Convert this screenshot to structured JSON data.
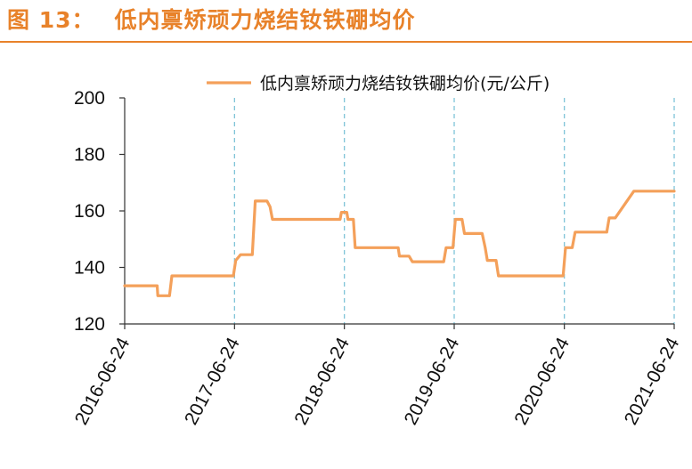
{
  "figure": {
    "number": "图 13：",
    "title": "低内禀矫顽力烧结钕铁硼均价"
  },
  "colors": {
    "accent": "#E8822A",
    "line": "#F4A05A",
    "gridline": "#7EC4D8",
    "axis": "#333333"
  },
  "chart_data": {
    "type": "line",
    "title": "",
    "xlabel": "",
    "ylabel": "",
    "ylim": [
      120,
      200
    ],
    "yticks": [
      120,
      140,
      160,
      180,
      200
    ],
    "x_range": [
      "2016-06-24",
      "2021-06-24"
    ],
    "xticks": [
      "2016-06-24",
      "2017-06-24",
      "2018-06-24",
      "2019-06-24",
      "2020-06-24",
      "2021-06-24"
    ],
    "vertical_gridlines": [
      "2017-06-24",
      "2018-06-24",
      "2019-06-24",
      "2020-06-24",
      "2021-06-24"
    ],
    "legend_position": "top",
    "series": [
      {
        "name": "低内禀矫顽力烧结钕铁硼均价(元/公斤)",
        "points": [
          [
            "2016-06-24",
            133.5
          ],
          [
            "2016-10-10",
            133.5
          ],
          [
            "2016-10-12",
            130
          ],
          [
            "2016-11-20",
            130
          ],
          [
            "2016-11-28",
            137
          ],
          [
            "2017-06-20",
            137
          ],
          [
            "2017-06-28",
            142.5
          ],
          [
            "2017-07-14",
            144.5
          ],
          [
            "2017-08-22",
            144.5
          ],
          [
            "2017-09-01",
            163.5
          ],
          [
            "2017-10-10",
            163.5
          ],
          [
            "2017-10-20",
            161.5
          ],
          [
            "2017-10-28",
            157
          ],
          [
            "2018-06-10",
            157
          ],
          [
            "2018-06-14",
            159.5
          ],
          [
            "2018-07-02",
            159.5
          ],
          [
            "2018-07-06",
            157
          ],
          [
            "2018-07-24",
            157
          ],
          [
            "2018-07-30",
            147
          ],
          [
            "2018-12-20",
            147
          ],
          [
            "2018-12-24",
            144
          ],
          [
            "2019-01-25",
            144
          ],
          [
            "2019-02-05",
            142
          ],
          [
            "2019-05-20",
            142
          ],
          [
            "2019-05-28",
            147
          ],
          [
            "2019-06-20",
            147
          ],
          [
            "2019-06-28",
            157
          ],
          [
            "2019-07-20",
            157
          ],
          [
            "2019-07-28",
            152
          ],
          [
            "2019-09-25",
            152
          ],
          [
            "2019-10-05",
            147
          ],
          [
            "2019-10-12",
            142.5
          ],
          [
            "2019-11-10",
            142.5
          ],
          [
            "2019-11-18",
            137
          ],
          [
            "2020-06-20",
            137
          ],
          [
            "2020-06-28",
            147
          ],
          [
            "2020-07-20",
            147
          ],
          [
            "2020-07-30",
            152.5
          ],
          [
            "2020-11-12",
            152.5
          ],
          [
            "2020-11-20",
            157.5
          ],
          [
            "2020-12-10",
            157.5
          ],
          [
            "2021-02-10",
            167
          ],
          [
            "2021-06-24",
            167
          ]
        ]
      }
    ]
  }
}
